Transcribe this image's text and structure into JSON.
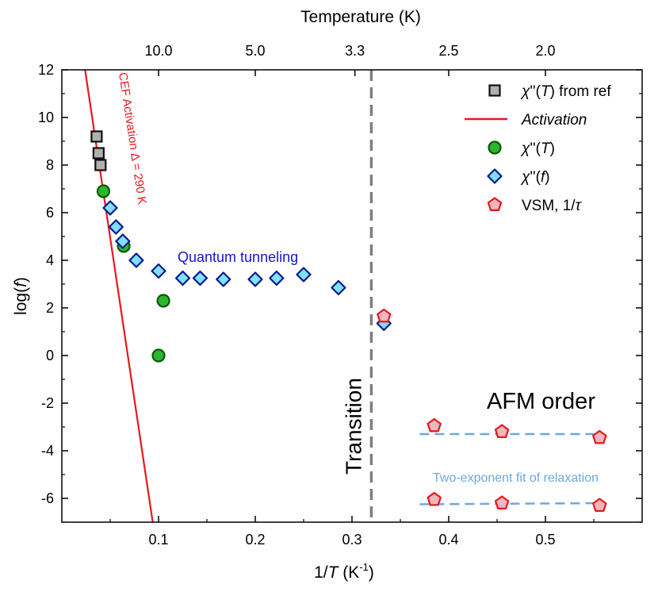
{
  "chart_data": {
    "type": "scatter",
    "xlabel": "1/T (K⁻¹)",
    "ylabel": "log(f)",
    "top_xlabel": "Temperature (K)",
    "xlim": [
      0.0,
      0.6
    ],
    "ylim": [
      -7,
      12
    ],
    "x_ticks": [
      0.1,
      0.2,
      0.3,
      0.4,
      0.5
    ],
    "x_tick_labels": [
      "0.1",
      "0.2",
      "0.3",
      "0.4",
      "0.5"
    ],
    "y_ticks": [
      -6,
      -4,
      -2,
      0,
      2,
      4,
      6,
      8,
      10,
      12
    ],
    "y_tick_labels": [
      "-6",
      "-4",
      "-2",
      "0",
      "2",
      "4",
      "6",
      "8",
      "10",
      "12"
    ],
    "top_ticks_temperature": [
      10.0,
      5.0,
      3.3,
      2.5,
      2.0
    ],
    "top_tick_labels": [
      "10.0",
      "5.0",
      "3.3",
      "2.5",
      "2.0"
    ],
    "grid": false,
    "legend_position": "top-right",
    "series": [
      {
        "name": "χ''(T) from ref",
        "marker": "square",
        "color": "#b0b0b0",
        "edge": "#111111",
        "points": [
          [
            0.036,
            9.2
          ],
          [
            0.038,
            8.5
          ],
          [
            0.04,
            8.0
          ]
        ]
      },
      {
        "name": "Activation",
        "marker": "line",
        "color": "#e41a1c",
        "points": [
          [
            0.024,
            12.0
          ],
          [
            0.094,
            -7.0
          ]
        ]
      },
      {
        "name": "χ''(T)",
        "marker": "circle",
        "color": "#2db52d",
        "edge": "#0a5a0a",
        "points": [
          [
            0.043,
            6.9
          ],
          [
            0.064,
            4.6
          ],
          [
            0.1,
            0.0
          ],
          [
            0.105,
            2.3
          ]
        ]
      },
      {
        "name": "χ''(f)",
        "marker": "diamond",
        "color": "#7fe0ff",
        "edge": "#0a1a8a",
        "points": [
          [
            0.05,
            6.2
          ],
          [
            0.056,
            5.4
          ],
          [
            0.063,
            4.8
          ],
          [
            0.077,
            4.0
          ],
          [
            0.1,
            3.55
          ],
          [
            0.125,
            3.25
          ],
          [
            0.143,
            3.25
          ],
          [
            0.167,
            3.2
          ],
          [
            0.2,
            3.2
          ],
          [
            0.222,
            3.25
          ],
          [
            0.25,
            3.4
          ],
          [
            0.286,
            2.85
          ],
          [
            0.333,
            1.35
          ]
        ]
      },
      {
        "name": "VSM, 1/τ",
        "marker": "pentagon",
        "color": "#f4b6bd",
        "edge": "#e41a1c",
        "points": [
          [
            0.333,
            1.65
          ],
          [
            0.385,
            -2.95
          ],
          [
            0.455,
            -3.2
          ],
          [
            0.556,
            -3.45
          ],
          [
            0.385,
            -6.05
          ],
          [
            0.455,
            -6.2
          ],
          [
            0.556,
            -6.3
          ]
        ]
      }
    ],
    "fit_lines": [
      {
        "color": "#6fa8dc",
        "points": [
          [
            0.37,
            -3.3
          ],
          [
            0.56,
            -3.3
          ]
        ]
      },
      {
        "color": "#6fa8dc",
        "points": [
          [
            0.37,
            -6.25
          ],
          [
            0.56,
            -6.2
          ]
        ]
      }
    ],
    "transition_x": 0.32,
    "annotations": {
      "cef": "CEF Activation Δ = 290 K",
      "quantum": "Quantum tunneling",
      "transition": "Transition",
      "afm": "AFM order",
      "fit": "Two-exponent fit of relaxation"
    },
    "colors": {
      "cef": "#e41a1c",
      "quantum": "#1515d0",
      "transition_line": "#7f7f7f",
      "fit": "#6fa8dc"
    }
  }
}
